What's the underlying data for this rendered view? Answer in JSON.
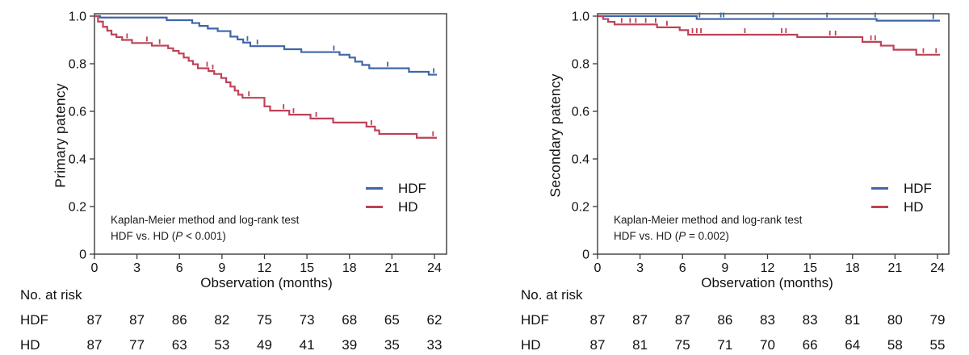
{
  "figure": {
    "background": "#ffffff",
    "axis_color": "#3a3a3a",
    "text_color": "#111111"
  },
  "chart_data": [
    {
      "type": "line",
      "subtype": "kaplan-meier-step",
      "panel": "left",
      "ylabel": "Primary patency",
      "xlabel": "Observation (months)",
      "xlim": [
        0,
        24
      ],
      "ylim": [
        0,
        1.0
      ],
      "grid": false,
      "xticks": [
        0,
        3,
        6,
        9,
        12,
        15,
        18,
        21,
        24
      ],
      "yticks": [
        "1.0",
        "0.8",
        "0.6",
        "0.4",
        "0.2",
        "0"
      ],
      "ytick_values": [
        1.0,
        0.8,
        0.6,
        0.4,
        0.2,
        0
      ],
      "legend_position": "inside-right",
      "annotation_line1": "Kaplan-Meier method and log-rank test",
      "annotation_line2": {
        "pre": "HDF vs. HD (",
        "p": "P",
        "post": " < 0.001)"
      },
      "p_value": "P < 0.001",
      "series": [
        {
          "name": "HDF",
          "color": "#3e66a8",
          "steps": [
            [
              0,
              1.0
            ],
            [
              0.4,
              0.994
            ],
            [
              5.1,
              0.983
            ],
            [
              6.9,
              0.971
            ],
            [
              7.4,
              0.959
            ],
            [
              8.0,
              0.948
            ],
            [
              8.7,
              0.937
            ],
            [
              9.6,
              0.914
            ],
            [
              10.1,
              0.902
            ],
            [
              10.5,
              0.889
            ],
            [
              11.0,
              0.874
            ],
            [
              13.4,
              0.861
            ],
            [
              14.6,
              0.849
            ],
            [
              17.3,
              0.838
            ],
            [
              18.0,
              0.826
            ],
            [
              18.4,
              0.809
            ],
            [
              18.9,
              0.795
            ],
            [
              19.4,
              0.781
            ],
            [
              22.2,
              0.766
            ],
            [
              23.6,
              0.754
            ]
          ],
          "censor_months": [
            10.8,
            11.5,
            16.9,
            20.7,
            23.95
          ]
        },
        {
          "name": "HD",
          "color": "#bd4257",
          "steps": [
            [
              0,
              1.0
            ],
            [
              0.25,
              0.977
            ],
            [
              0.6,
              0.955
            ],
            [
              0.9,
              0.939
            ],
            [
              1.2,
              0.923
            ],
            [
              1.55,
              0.912
            ],
            [
              1.95,
              0.9
            ],
            [
              2.65,
              0.887
            ],
            [
              4.05,
              0.876
            ],
            [
              5.2,
              0.865
            ],
            [
              5.55,
              0.854
            ],
            [
              5.95,
              0.843
            ],
            [
              6.3,
              0.826
            ],
            [
              6.65,
              0.812
            ],
            [
              6.95,
              0.798
            ],
            [
              7.3,
              0.781
            ],
            [
              8.05,
              0.769
            ],
            [
              8.45,
              0.757
            ],
            [
              8.95,
              0.74
            ],
            [
              9.3,
              0.722
            ],
            [
              9.6,
              0.704
            ],
            [
              9.9,
              0.687
            ],
            [
              10.15,
              0.67
            ],
            [
              10.45,
              0.657
            ],
            [
              12.0,
              0.621
            ],
            [
              12.4,
              0.603
            ],
            [
              13.75,
              0.586
            ],
            [
              15.25,
              0.57
            ],
            [
              16.85,
              0.553
            ],
            [
              19.2,
              0.536
            ],
            [
              19.8,
              0.52
            ],
            [
              20.1,
              0.505
            ],
            [
              22.75,
              0.489
            ]
          ],
          "censor_months": [
            2.3,
            3.7,
            4.6,
            7.95,
            8.35,
            10.9,
            13.35,
            14.05,
            15.65,
            19.55,
            23.9
          ]
        }
      ],
      "at_risk": {
        "title": "No. at risk",
        "rows": [
          {
            "label": "HDF",
            "values": [
              87,
              87,
              86,
              82,
              75,
              73,
              68,
              65,
              62
            ]
          },
          {
            "label": "HD",
            "values": [
              87,
              77,
              63,
              53,
              49,
              41,
              39,
              35,
              33
            ]
          }
        ]
      }
    },
    {
      "type": "line",
      "subtype": "kaplan-meier-step",
      "panel": "right",
      "ylabel": "Secondary patency",
      "xlabel": "Observation (months)",
      "xlim": [
        0,
        24
      ],
      "ylim": [
        0,
        1.0
      ],
      "grid": false,
      "xticks": [
        0,
        3,
        6,
        9,
        12,
        15,
        18,
        21,
        24
      ],
      "yticks": [
        "1.0",
        "0.8",
        "0.6",
        "0.4",
        "0.2",
        "0"
      ],
      "ytick_values": [
        1.0,
        0.8,
        0.6,
        0.4,
        0.2,
        0
      ],
      "legend_position": "inside-right",
      "annotation_line1": "Kaplan-Meier method and log-rank test",
      "annotation_line2": {
        "pre": "HDF vs. HD (",
        "p": "P",
        "post": " = 0.002)"
      },
      "p_value": "P = 0.002",
      "series": [
        {
          "name": "HDF",
          "color": "#3e66a8",
          "steps": [
            [
              0,
              1.0
            ],
            [
              7.0,
              0.988
            ],
            [
              19.7,
              0.981
            ]
          ],
          "censor_months": [
            7.2,
            8.7,
            8.9,
            12.4,
            16.2,
            19.6,
            23.7
          ]
        },
        {
          "name": "HD",
          "color": "#bd4257",
          "steps": [
            [
              0,
              1.0
            ],
            [
              0.4,
              0.988
            ],
            [
              0.75,
              0.976
            ],
            [
              1.2,
              0.965
            ],
            [
              4.2,
              0.953
            ],
            [
              5.8,
              0.941
            ],
            [
              6.4,
              0.922
            ],
            [
              14.1,
              0.912
            ],
            [
              18.7,
              0.892
            ],
            [
              20.0,
              0.876
            ],
            [
              20.9,
              0.859
            ],
            [
              22.5,
              0.838
            ]
          ],
          "censor_months": [
            1.7,
            2.3,
            2.7,
            3.4,
            4.1,
            4.9,
            6.7,
            7.0,
            7.3,
            10.4,
            13.0,
            13.3,
            16.4,
            16.8,
            19.3,
            19.6,
            23.0,
            23.9
          ]
        }
      ],
      "at_risk": {
        "title": "No. at risk",
        "rows": [
          {
            "label": "HDF",
            "values": [
              87,
              87,
              87,
              86,
              83,
              83,
              81,
              80,
              79
            ]
          },
          {
            "label": "HD",
            "values": [
              87,
              81,
              75,
              71,
              70,
              66,
              64,
              58,
              55
            ]
          }
        ]
      }
    }
  ]
}
